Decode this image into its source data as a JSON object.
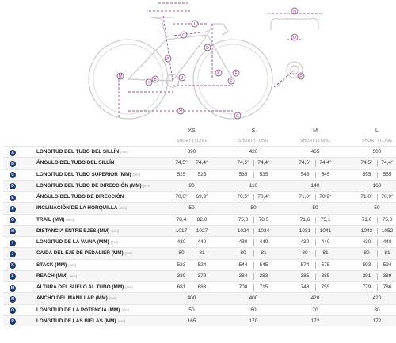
{
  "diagram": {
    "letters": [
      "A",
      "B",
      "C",
      "D",
      "E",
      "F",
      "G",
      "H",
      "I",
      "J",
      "K",
      "L",
      "M",
      "N",
      "O",
      "P"
    ]
  },
  "sizes": [
    "XS",
    "S",
    "M",
    "L"
  ],
  "subheader": "SHORT | LONG",
  "rows": [
    {
      "id": "A",
      "label": "LONGITUD DEL TUBO DEL SILLÍN",
      "unit": "(mm)",
      "values": [
        [
          "390"
        ],
        [
          "420"
        ],
        [
          "465"
        ],
        [
          "500"
        ]
      ]
    },
    {
      "id": "B",
      "label": "ÁNGULO DEL TUBO DEL SILLÍN",
      "unit": "",
      "values": [
        [
          "74,5°",
          "74,4°"
        ],
        [
          "74,5°",
          "74,4°"
        ],
        [
          "74,5°",
          "74,4°"
        ],
        [
          "74,5°",
          "74,4°"
        ]
      ]
    },
    {
      "id": "C",
      "label": "LONGITUD DEL TUBO SUPERIOR (MM)",
      "unit": "(mm)",
      "values": [
        [
          "525",
          "525"
        ],
        [
          "535",
          "535"
        ],
        [
          "545",
          "545"
        ],
        [
          "555",
          "555"
        ]
      ]
    },
    {
      "id": "D",
      "label": "LONGITUD DEL TUBO DE DIRECCIÓN (MM)",
      "unit": "(mm)",
      "values": [
        [
          "90"
        ],
        [
          "110"
        ],
        [
          "140"
        ],
        [
          "160"
        ]
      ]
    },
    {
      "id": "E",
      "label": "ÁNGULO DEL TUBO DE DIRECCIÓN",
      "unit": "",
      "values": [
        [
          "70,0°",
          "69,9°"
        ],
        [
          "70,5°",
          "70,4°"
        ],
        [
          "71,0°",
          "70,9°"
        ],
        [
          "71,0°",
          "70,9°"
        ]
      ]
    },
    {
      "id": "F",
      "label": "INCLINACIÓN DE LA HORQUILLA",
      "unit": "(mm)",
      "values": [
        [
          "50"
        ],
        [
          "50"
        ],
        [
          "50"
        ],
        [
          "50"
        ]
      ]
    },
    {
      "id": "G",
      "label": "TRAIL (MM)",
      "unit": "(mm)",
      "values": [
        [
          "78,4",
          "82,0"
        ],
        [
          "75,0",
          "78,5"
        ],
        [
          "71,6",
          "75,1"
        ],
        [
          "71,6",
          "75,0"
        ]
      ]
    },
    {
      "id": "H",
      "label": "DISTANCIA ENTRE EJES (MM)",
      "unit": "(mm)",
      "values": [
        [
          "1017",
          "1027"
        ],
        [
          "1024",
          "1034"
        ],
        [
          "1031",
          "1041"
        ],
        [
          "1043",
          "1052"
        ]
      ]
    },
    {
      "id": "I",
      "label": "LONGITUD DE LA VAINA (MM)",
      "unit": "(mm)",
      "values": [
        [
          "430",
          "440"
        ],
        [
          "430",
          "440"
        ],
        [
          "430",
          "440"
        ],
        [
          "430",
          "440"
        ]
      ]
    },
    {
      "id": "J",
      "label": "CAÍDA DEL EJE DE PEDALIER (MM)",
      "unit": "(mm)",
      "values": [
        [
          "80",
          "81"
        ],
        [
          "80",
          "81"
        ],
        [
          "80",
          "81"
        ],
        [
          "80",
          "81"
        ]
      ]
    },
    {
      "id": "K",
      "label": "STACK (MM)",
      "unit": "(mm)",
      "values": [
        [
          "523",
          "524"
        ],
        [
          "544",
          "545"
        ],
        [
          "574",
          "575"
        ],
        [
          "593",
          "594"
        ]
      ]
    },
    {
      "id": "L",
      "label": "REACH (MM)",
      "unit": "(mm)",
      "values": [
        [
          "380",
          "379"
        ],
        [
          "384",
          "383"
        ],
        [
          "385",
          "385"
        ],
        [
          "391",
          "389"
        ]
      ]
    },
    {
      "id": "M",
      "label": "ALTURA DEL SUELO AL TUBO (MM)",
      "unit": "(mm)",
      "values": [
        [
          "681",
          "688"
        ],
        [
          "708",
          "715"
        ],
        [
          "748",
          "755"
        ],
        [
          "779",
          "786"
        ]
      ]
    },
    {
      "id": "N",
      "label": "ANCHO DEL MANILLAR (MM)",
      "unit": "(mm)",
      "values": [
        [
          "400"
        ],
        [
          "400"
        ],
        [
          "420"
        ],
        [
          "420"
        ]
      ]
    },
    {
      "id": "O",
      "label": "LONGITUD DE LA POTENCIA (MM)",
      "unit": "(mm)",
      "values": [
        [
          "50"
        ],
        [
          "60"
        ],
        [
          "70"
        ],
        [
          "80"
        ]
      ]
    },
    {
      "id": "P",
      "label": "LONGITUD DE LAS BIELAS (MM)",
      "unit": "(mm)",
      "values": [
        [
          "165"
        ],
        [
          "170"
        ],
        [
          "172"
        ],
        [
          "172"
        ]
      ]
    }
  ],
  "colors": {
    "accent": "#8a2a7a",
    "badge": "#1d3a6e",
    "frame": "#cfcfcf"
  }
}
